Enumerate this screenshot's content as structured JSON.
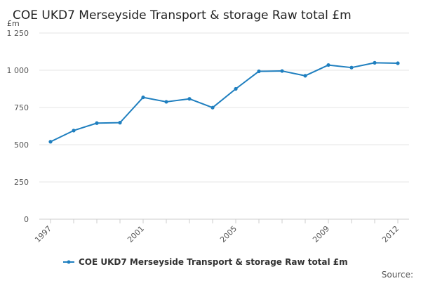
{
  "chart_data": {
    "type": "line",
    "title": "COE UKD7 Merseyside Transport & storage Raw total £m",
    "unit_label": "£m",
    "xlabel": "",
    "ylabel": "",
    "x": [
      1997,
      1998,
      1999,
      2000,
      2001,
      2002,
      2003,
      2004,
      2005,
      2006,
      2007,
      2008,
      2009,
      2010,
      2011,
      2012
    ],
    "x_tick_labels": [
      "1997",
      "2001",
      "2005",
      "2009",
      "2012"
    ],
    "ylim": [
      0,
      1250
    ],
    "y_ticks": [
      0,
      250,
      500,
      750,
      1000,
      1250
    ],
    "y_tick_labels": [
      "0",
      "250",
      "500",
      "750",
      "1 000",
      "1 250"
    ],
    "grid": "horizontal",
    "legend_position": "bottom",
    "series": [
      {
        "name": "COE UKD7 Merseyside Transport & storage Raw total £m",
        "color": "#1f7fbf",
        "values": [
          520,
          595,
          645,
          648,
          818,
          788,
          808,
          749,
          875,
          993,
          995,
          963,
          1035,
          1018,
          1050,
          1047
        ]
      }
    ],
    "source_label": "Source:"
  }
}
